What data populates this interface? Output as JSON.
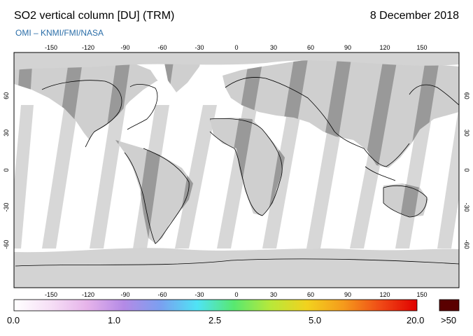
{
  "header": {
    "title": "SO2 vertical column [DU] (TRM)",
    "date": "8 December 2018",
    "credit": "OMI  –  KNMI/FMI/NASA"
  },
  "map": {
    "lon_ticks": [
      "-150",
      "-120",
      "-90",
      "-60",
      "-30",
      "0",
      "30",
      "60",
      "90",
      "120",
      "150"
    ],
    "lat_ticks": [
      "60",
      "30",
      "0",
      "-30",
      "-60"
    ],
    "colors": {
      "ocean_covered": "#ffffff",
      "land_covered": "#cfcfcf",
      "gap_ocean": "#d7d7d7",
      "gap_land": "#999999",
      "polar_no_data": "#d3d3d3",
      "coastline": "#000000"
    }
  },
  "colorbar": {
    "labels": [
      "0.0",
      "1.0",
      "2.5",
      "5.0",
      "20.0"
    ],
    "overflow_label": ">50",
    "overflow_color": "#5a0000",
    "stops": [
      "#ffffff",
      "#f6dff6",
      "#e6b3ea",
      "#b48ae6",
      "#7aa0f0",
      "#4fe3f5",
      "#58e870",
      "#b8e83a",
      "#f2d21e",
      "#f59a1c",
      "#f04a16",
      "#e00000"
    ]
  }
}
